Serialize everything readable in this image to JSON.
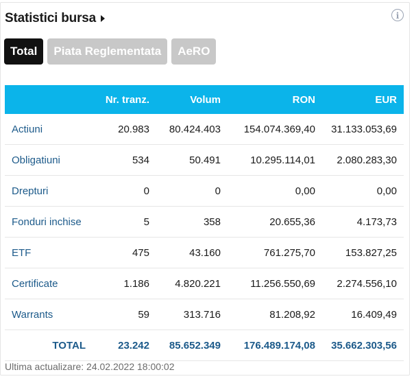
{
  "header": {
    "title": "Statistici bursa",
    "info_icon": "i"
  },
  "tabs": [
    {
      "label": "Total",
      "active": true
    },
    {
      "label": "Piata Reglementata",
      "active": false
    },
    {
      "label": "AeRO",
      "active": false
    }
  ],
  "table": {
    "columns": [
      "",
      "Nr. tranz.",
      "Volum",
      "RON",
      "EUR"
    ],
    "rows": [
      {
        "name": "Actiuni",
        "tranz": "20.983",
        "volum": "80.424.403",
        "ron": "154.074.369,40",
        "eur": "31.133.053,69"
      },
      {
        "name": "Obligatiuni",
        "tranz": "534",
        "volum": "50.491",
        "ron": "10.295.114,01",
        "eur": "2.080.283,30"
      },
      {
        "name": "Drepturi",
        "tranz": "0",
        "volum": "0",
        "ron": "0,00",
        "eur": "0,00"
      },
      {
        "name": "Fonduri inchise",
        "tranz": "5",
        "volum": "358",
        "ron": "20.655,36",
        "eur": "4.173,73"
      },
      {
        "name": "ETF",
        "tranz": "475",
        "volum": "43.160",
        "ron": "761.275,70",
        "eur": "153.827,25"
      },
      {
        "name": "Certificate",
        "tranz": "1.186",
        "volum": "4.820.221",
        "ron": "11.256.550,69",
        "eur": "2.274.556,10"
      },
      {
        "name": "Warrants",
        "tranz": "59",
        "volum": "313.716",
        "ron": "81.208,92",
        "eur": "16.409,49"
      }
    ],
    "total": {
      "name": "TOTAL",
      "tranz": "23.242",
      "volum": "85.652.349",
      "ron": "176.489.174,08",
      "eur": "35.662.303,56"
    }
  },
  "footer": {
    "last_update": "Ultima actualizare: 24.02.2022 18:00:02"
  },
  "colors": {
    "header_bg": "#0bb4ea",
    "link": "#1c5a8a",
    "tab_active": "#111111",
    "tab_inactive": "#c8c8c8"
  }
}
